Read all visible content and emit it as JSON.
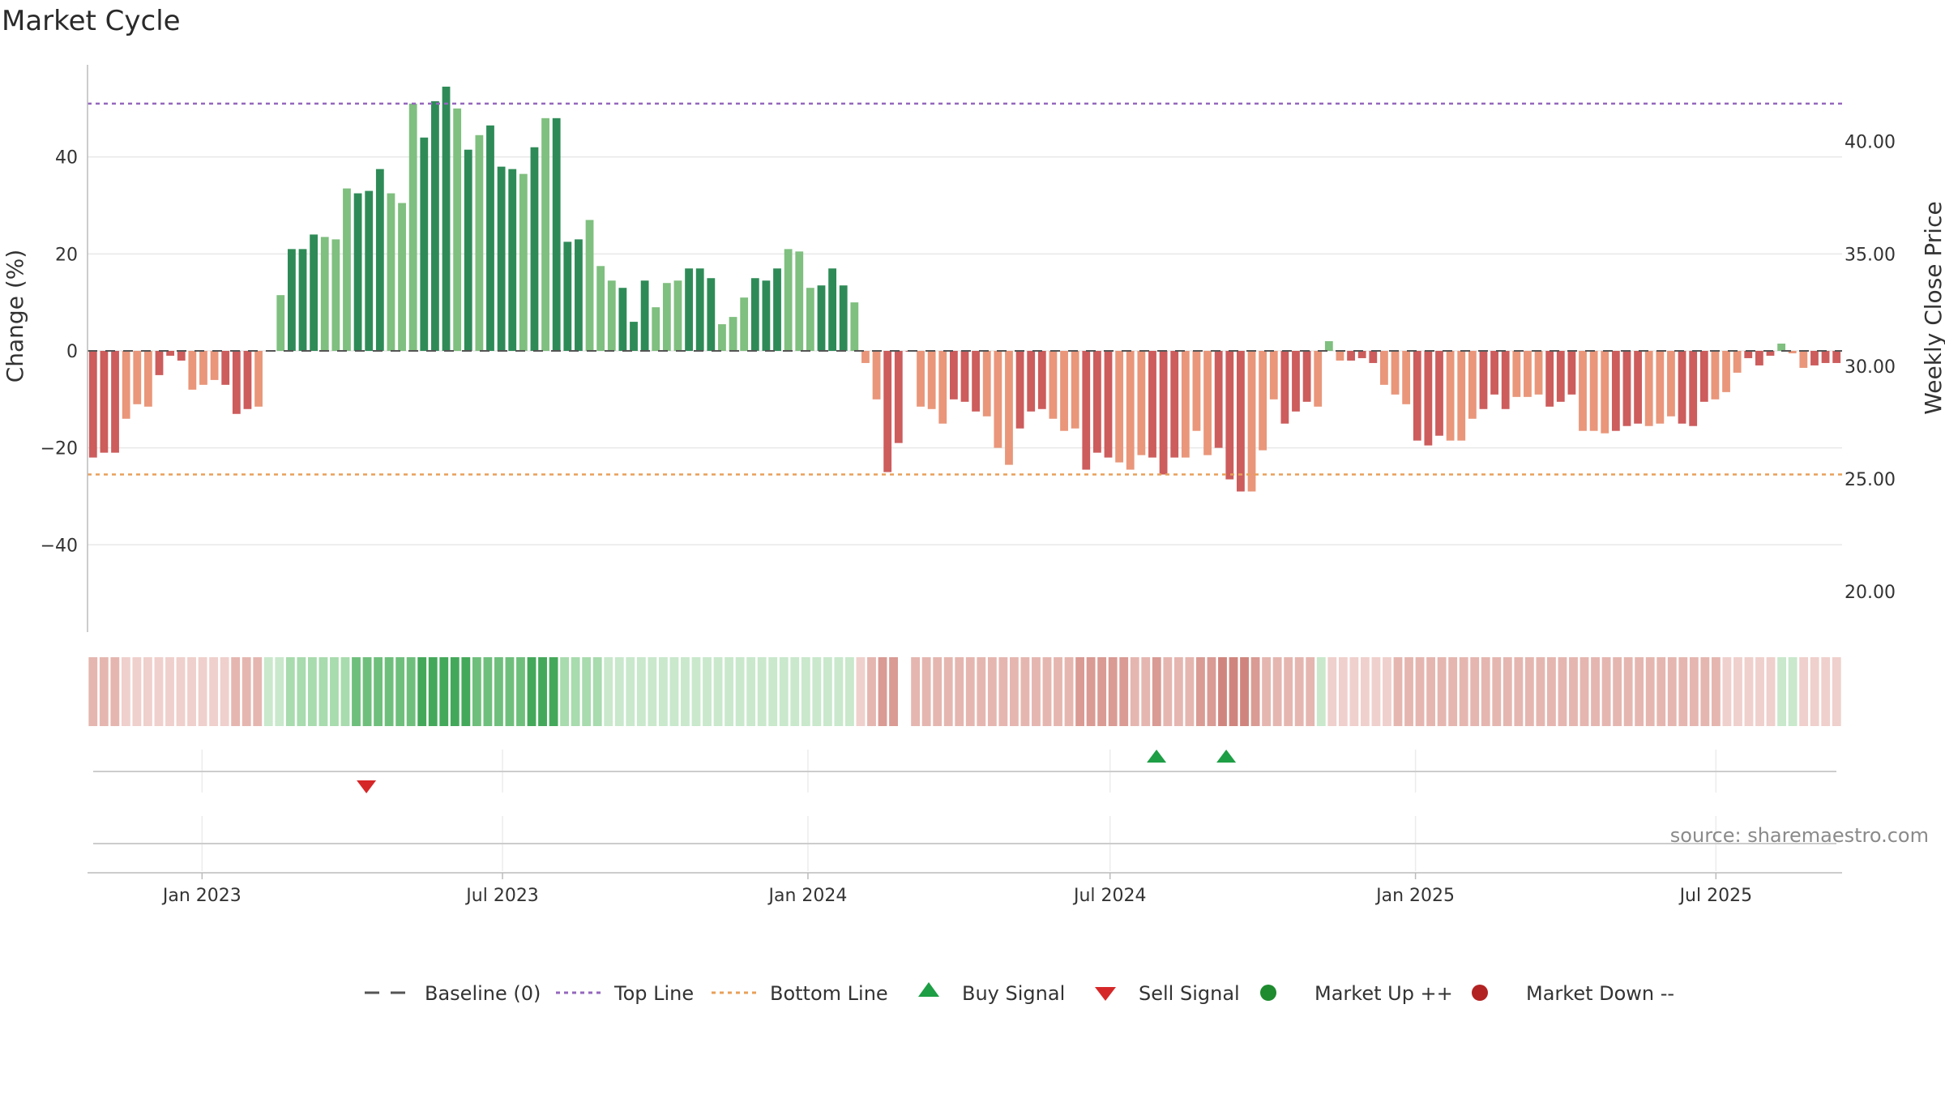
{
  "title": "Market Cycle",
  "source": "source: sharemaestro.com",
  "colors": {
    "strong_up": "#2e8b57",
    "up": "#7fbf7f",
    "strong_down": "#cd5c5c",
    "down": "#e9967a",
    "top_line": "#9467bd",
    "bottom_line": "#e8a05a",
    "baseline": "#555555",
    "buy": "#1e9e45",
    "sell": "#d62728",
    "market_up": "#1e8b2e",
    "market_down": "#b22222"
  },
  "chart_data": {
    "type": "bar",
    "ylabel": "Change (%)",
    "ylabel_right": "Weekly Close Price",
    "ylim": [
      -58,
      59
    ],
    "y_ticks": [
      40,
      20,
      0,
      -20,
      -40
    ],
    "y_tick_labels": [
      "40",
      "20",
      "0",
      "−20",
      "−40"
    ],
    "y2lim": [
      18.2,
      43.4
    ],
    "y2_ticks": [
      40,
      35,
      30,
      25,
      20
    ],
    "y2_tick_labels": [
      "40.00",
      "35.00",
      "30.00",
      "25.00",
      "20.00"
    ],
    "top_line": 51,
    "bottom_line": -25.5,
    "x_start": "2022-10-24",
    "x_end": "2025-09-15",
    "x_ticks": [
      "2023-01-01",
      "2023-07-01",
      "2024-01-01",
      "2024-07-01",
      "2025-01-01",
      "2025-07-01"
    ],
    "x_tick_labels": [
      "Jan 2023",
      "Jul 2023",
      "Jan 2024",
      "Jul 2024",
      "Jan 2025",
      "Jul 2025"
    ],
    "values": [
      -22,
      -21,
      -21,
      -14,
      -11,
      -11.5,
      -5,
      -1,
      -2,
      -8,
      -7,
      -6,
      -7,
      -13,
      -12,
      -11.5,
      0,
      11.5,
      21,
      21,
      24,
      23.5,
      23,
      33.5,
      32.5,
      33,
      37.5,
      32.5,
      30.5,
      51,
      44,
      51.5,
      54.5,
      50,
      41.5,
      44.5,
      46.5,
      38,
      37.5,
      36.5,
      42,
      48,
      48,
      22.5,
      23,
      27,
      17.5,
      14.5,
      13,
      6,
      14.5,
      9,
      14,
      14.5,
      17,
      17,
      15,
      5.5,
      7,
      11,
      15,
      14.5,
      17,
      21,
      20.5,
      13,
      13.5,
      17,
      13.5,
      10,
      -2.5,
      -10,
      -25,
      -19,
      0,
      -11.5,
      -12,
      -15,
      -10,
      -10.5,
      -12.5,
      -13.5,
      -20,
      -23.5,
      -16,
      -12.5,
      -12,
      -14,
      -16.5,
      -16,
      -24.5,
      -21,
      -22,
      -23,
      -24.5,
      -21.5,
      -22,
      -25.5,
      -22,
      -22,
      -16.5,
      -21.5,
      -20,
      -26.5,
      -29,
      -29,
      -20.5,
      -10,
      -15,
      -12.5,
      -10.5,
      -11.5,
      2,
      -2,
      -2,
      -1.5,
      -2.5,
      -7,
      -9,
      -11,
      -18.5,
      -19.5,
      -17.5,
      -18.5,
      -18.5,
      -14,
      -12,
      -9,
      -12,
      -9.5,
      -9.5,
      -9,
      -11.5,
      -10.5,
      -9,
      -16.5,
      -16.5,
      -17,
      -16.5,
      -15.5,
      -15,
      -15.5,
      -15,
      -13.5,
      -15,
      -15.5,
      -10.5,
      -10,
      -8.5,
      -4.5,
      -1.5,
      -3,
      -1,
      1.5,
      -0.5,
      -3.5,
      -3,
      -2.5,
      -2.5
    ],
    "heat_strip": [
      -2,
      -2,
      -2,
      -1,
      -1,
      -1,
      -1,
      -1,
      -1,
      -1,
      -1,
      -1,
      -1,
      -2,
      -2,
      -2,
      1,
      1,
      2,
      2,
      2,
      2,
      2,
      2,
      3,
      3,
      3,
      3,
      3,
      3,
      4,
      4,
      4,
      4,
      4,
      3,
      3,
      3,
      3,
      3,
      4,
      4,
      4,
      2,
      2,
      2,
      2,
      1,
      1,
      1,
      1,
      1,
      1,
      1,
      1,
      1,
      1,
      1,
      1,
      1,
      1,
      1,
      1,
      1,
      1,
      1,
      1,
      1,
      1,
      1,
      -1,
      -2,
      -3,
      -3,
      0,
      -2,
      -2,
      -2,
      -2,
      -2,
      -2,
      -2,
      -2,
      -2,
      -2,
      -2,
      -2,
      -2,
      -2,
      -2,
      -3,
      -3,
      -3,
      -3,
      -3,
      -2,
      -2,
      -3,
      -2,
      -2,
      -2,
      -3,
      -3,
      -4,
      -4,
      -4,
      -3,
      -2,
      -2,
      -2,
      -2,
      -2,
      1,
      -1,
      -1,
      -1,
      -1,
      -1,
      -1,
      -2,
      -2,
      -2,
      -2,
      -2,
      -2,
      -2,
      -2,
      -2,
      -2,
      -2,
      -2,
      -2,
      -2,
      -2,
      -2,
      -2,
      -2,
      -2,
      -2,
      -2,
      -2,
      -2,
      -2,
      -2,
      -2,
      -2,
      -2,
      -2,
      -2,
      -1,
      -1,
      -1,
      -1,
      -1,
      1,
      1,
      -1,
      -1,
      -1,
      -1
    ],
    "buy_signals": [
      "2024-07-29",
      "2024-09-09"
    ],
    "sell_signals": [
      "2023-04-10"
    ],
    "legend_position": "bottom-center"
  },
  "legend": [
    {
      "key": "baseline",
      "label": "Baseline (0)"
    },
    {
      "key": "top",
      "label": "Top Line"
    },
    {
      "key": "bottom",
      "label": "Bottom Line"
    },
    {
      "key": "buy",
      "label": "Buy Signal"
    },
    {
      "key": "sell",
      "label": "Sell Signal"
    },
    {
      "key": "mup",
      "label": "Market Up ++"
    },
    {
      "key": "mdown",
      "label": "Market Down --"
    }
  ]
}
